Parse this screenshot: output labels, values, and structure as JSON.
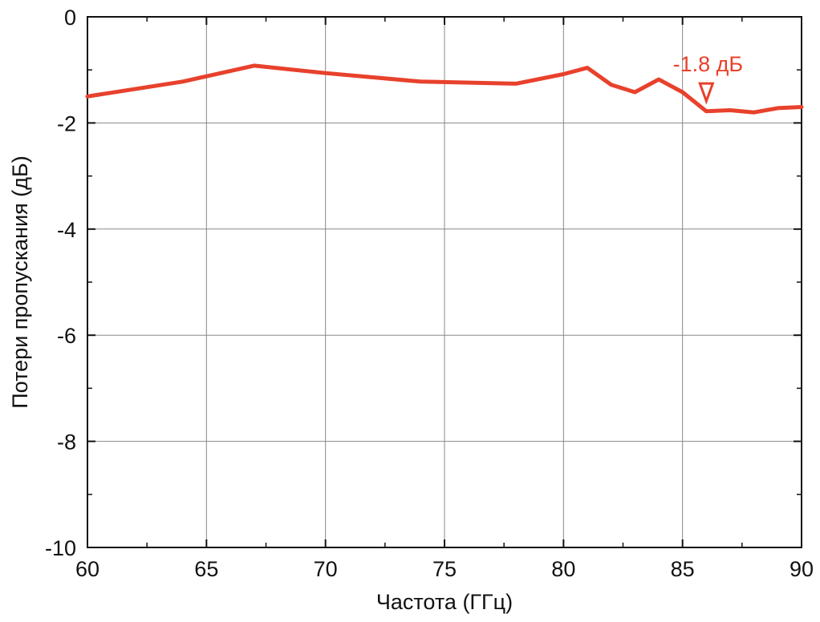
{
  "chart_data": {
    "type": "line",
    "title": "",
    "xlabel": "Частота (ГГц)",
    "ylabel": "Потери пропускания (дБ)",
    "xlim": [
      60,
      90
    ],
    "ylim": [
      -10,
      0
    ],
    "xticks": [
      60,
      65,
      70,
      75,
      80,
      85,
      90
    ],
    "yticks": [
      0,
      -2,
      -4,
      -6,
      -8,
      -10
    ],
    "xtick_labels": [
      "60",
      "65",
      "70",
      "75",
      "80",
      "85",
      "90"
    ],
    "ytick_labels": [
      "0",
      "-2",
      "-4",
      "-6",
      "-8",
      "-10"
    ],
    "grid": true,
    "series": [
      {
        "color": "#e8412c",
        "x": [
          60,
          64,
          67,
          70,
          74,
          78,
          80,
          81,
          82,
          83,
          84,
          85,
          86,
          87,
          88,
          89,
          90
        ],
        "y": [
          -1.5,
          -1.22,
          -0.92,
          -1.06,
          -1.22,
          -1.26,
          -1.08,
          -0.96,
          -1.28,
          -1.42,
          -1.18,
          -1.42,
          -1.78,
          -1.76,
          -1.8,
          -1.72,
          -1.7
        ]
      }
    ],
    "annotations": [
      {
        "text": "-1.8 дБ",
        "x": 86,
        "y": -1.8,
        "marker": "down-triangle",
        "color": "#e8412c"
      }
    ]
  }
}
